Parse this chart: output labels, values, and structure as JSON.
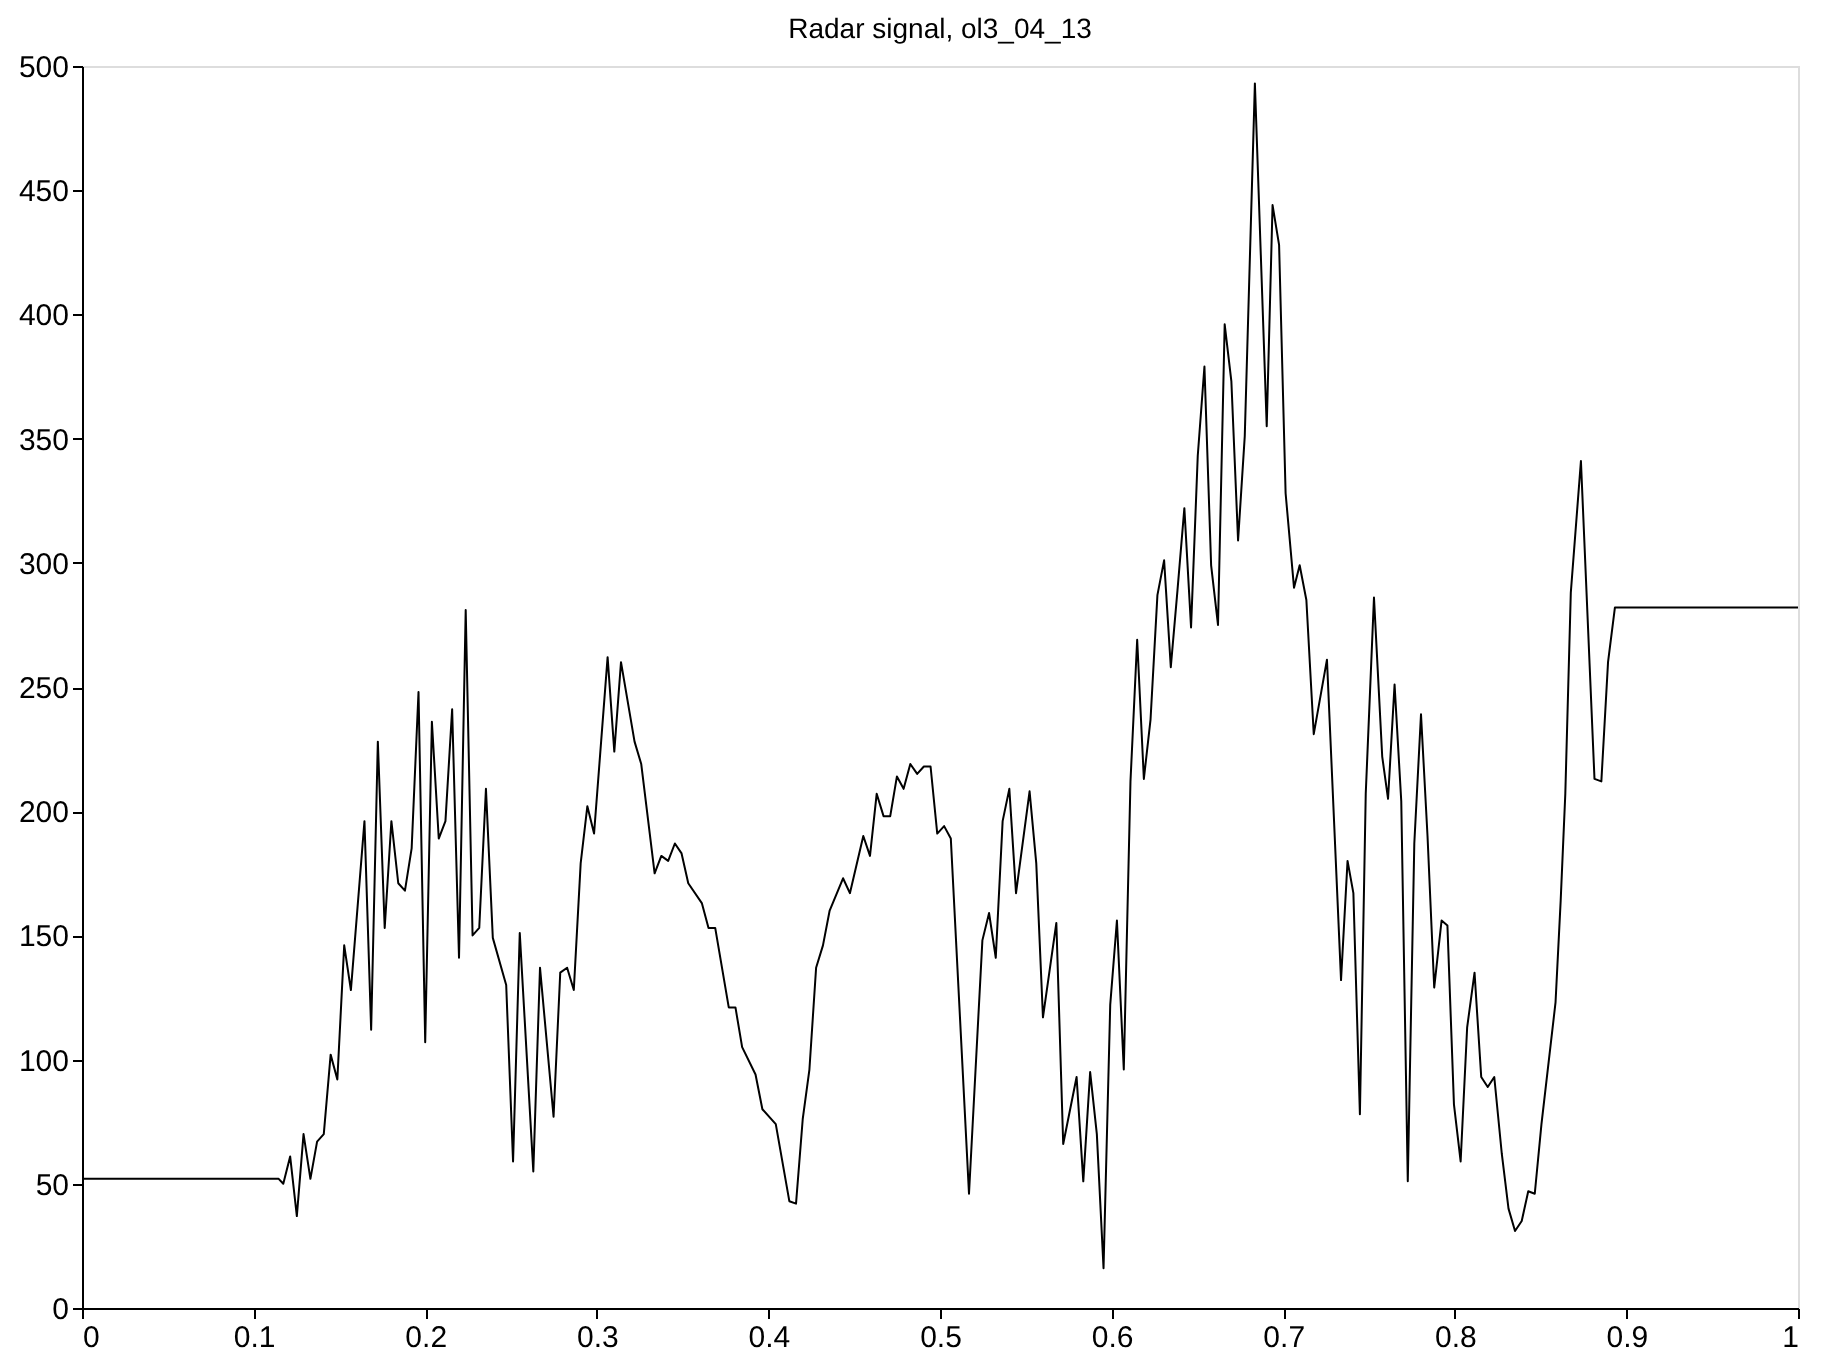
{
  "chart_data": {
    "type": "line",
    "title": "Radar signal, ol3_04_13",
    "x": [
      0,
      0.1146,
      0.1173,
      0.1213,
      0.1252,
      0.1291,
      0.1331,
      0.137,
      0.1409,
      0.1449,
      0.1488,
      0.1528,
      0.1567,
      0.1646,
      0.1685,
      0.1724,
      0.1764,
      0.1803,
      0.1843,
      0.1882,
      0.1921,
      0.1961,
      0.2,
      0.2039,
      0.2079,
      0.2118,
      0.2157,
      0.2197,
      0.2236,
      0.2276,
      0.2315,
      0.2354,
      0.2394,
      0.2472,
      0.2512,
      0.2551,
      0.263,
      0.2669,
      0.2748,
      0.2787,
      0.2827,
      0.2866,
      0.2906,
      0.2945,
      0.2984,
      0.3063,
      0.3102,
      0.3141,
      0.322,
      0.3259,
      0.3337,
      0.3376,
      0.3416,
      0.3455,
      0.3494,
      0.3533,
      0.3612,
      0.3651,
      0.369,
      0.3769,
      0.3808,
      0.3847,
      0.3925,
      0.3965,
      0.4043,
      0.4122,
      0.4161,
      0.42,
      0.4239,
      0.4278,
      0.4318,
      0.4357,
      0.4435,
      0.4475,
      0.4553,
      0.4592,
      0.4631,
      0.4671,
      0.471,
      0.4749,
      0.4788,
      0.4827,
      0.4867,
      0.4906,
      0.4945,
      0.4984,
      0.5024,
      0.5063,
      0.5169,
      0.5247,
      0.5286,
      0.5325,
      0.5365,
      0.5404,
      0.5443,
      0.5522,
      0.5561,
      0.56,
      0.5678,
      0.5718,
      0.5796,
      0.5835,
      0.5875,
      0.5914,
      0.5953,
      0.5992,
      0.6031,
      0.6071,
      0.611,
      0.6149,
      0.6188,
      0.6227,
      0.6267,
      0.6306,
      0.6345,
      0.6384,
      0.6424,
      0.6463,
      0.6502,
      0.6541,
      0.658,
      0.662,
      0.6659,
      0.6698,
      0.6737,
      0.6776,
      0.6835,
      0.6904,
      0.6938,
      0.6976,
      0.7014,
      0.7063,
      0.7096,
      0.7135,
      0.7178,
      0.7255,
      0.7337,
      0.7375,
      0.7409,
      0.7447,
      0.7481,
      0.7529,
      0.7577,
      0.7611,
      0.7649,
      0.7688,
      0.7726,
      0.7764,
      0.7803,
      0.7841,
      0.788,
      0.7923,
      0.7957,
      0.7995,
      0.8034,
      0.8072,
      0.8115,
      0.8154,
      0.8192,
      0.823,
      0.8274,
      0.8313,
      0.8351,
      0.839,
      0.8428,
      0.8466,
      0.8505,
      0.8587,
      0.8617,
      0.8644,
      0.8676,
      0.8735,
      0.8814,
      0.8854,
      0.8893,
      0.8933,
      1
    ],
    "series": [
      {
        "color": "#000000",
        "values": [
          52,
          52,
          50,
          61,
          37,
          70,
          52,
          67,
          70,
          102,
          92,
          146,
          128,
          196,
          112,
          228,
          153,
          196,
          171,
          168,
          185,
          248,
          107,
          236,
          189,
          196,
          241,
          141,
          281,
          150,
          153,
          209,
          149,
          130,
          59,
          151,
          55,
          137,
          77,
          135,
          137,
          128,
          179,
          202,
          191,
          262,
          224,
          260,
          228,
          219,
          175,
          182,
          180,
          187,
          183,
          171,
          163,
          153,
          153,
          121,
          121,
          105,
          94,
          80,
          74,
          43,
          42,
          76,
          96,
          137,
          146,
          160,
          173,
          167,
          190,
          182,
          207,
          198,
          198,
          214,
          209,
          219,
          215,
          218,
          218,
          191,
          194,
          189,
          46,
          148,
          159,
          141,
          196,
          209,
          167,
          208,
          179,
          117,
          155,
          66,
          93,
          51,
          95,
          70,
          16,
          122,
          156,
          96,
          212,
          269,
          213,
          237,
          287,
          301,
          258,
          289,
          322,
          274,
          343,
          379,
          299,
          275,
          396,
          373,
          309,
          351,
          493,
          355,
          444,
          428,
          328,
          290,
          299,
          285,
          231,
          261,
          132,
          180,
          167,
          78,
          207,
          286,
          222,
          205,
          251,
          204,
          51,
          187,
          239,
          190,
          129,
          156,
          154,
          82,
          59,
          113,
          135,
          93,
          89,
          93,
          62,
          40,
          31,
          35,
          47,
          46,
          74,
          123,
          164,
          207,
          288,
          341,
          213,
          212,
          260,
          282,
          282
        ]
      }
    ],
    "xlim": [
      0,
      1
    ],
    "ylim": [
      0,
      500
    ],
    "xticks": [
      0,
      0.1,
      0.2,
      0.3,
      0.4,
      0.5,
      0.6,
      0.7,
      0.8,
      0.9,
      1
    ],
    "yticks": [
      0,
      50,
      100,
      150,
      200,
      250,
      300,
      350,
      400,
      450,
      500
    ],
    "grid": false
  }
}
